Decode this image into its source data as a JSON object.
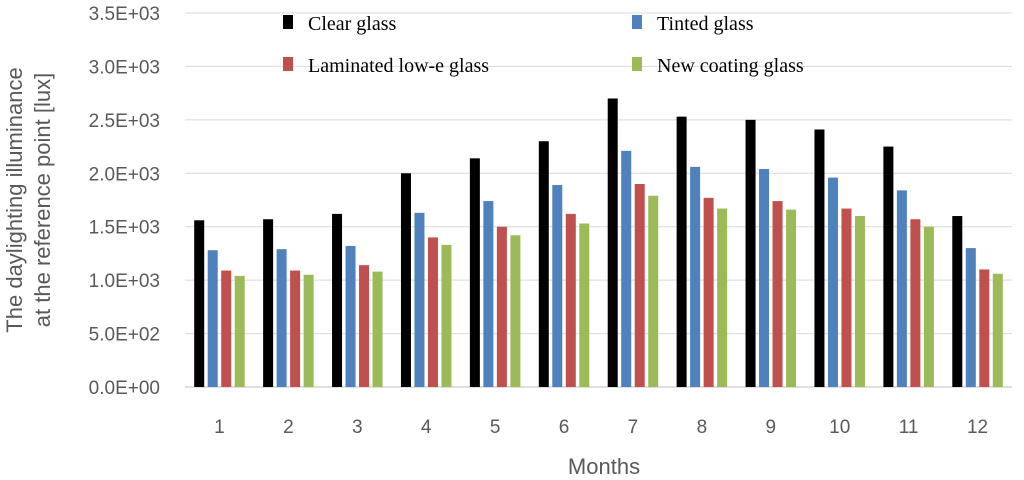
{
  "chart_data": {
    "type": "bar",
    "title": "",
    "xlabel": "Months",
    "ylabel_line1": "The daylighting illuminance",
    "ylabel_line2": "at the  reference point [lux]",
    "ylim": [
      0,
      3500
    ],
    "ytick_values": [
      0,
      500,
      1000,
      1500,
      2000,
      2500,
      3000,
      3500
    ],
    "ytick_labels": [
      "0.0E+00",
      "5.0E+02",
      "1.0E+03",
      "1.5E+03",
      "2.0E+03",
      "2.5E+03",
      "3.0E+03",
      "3.5E+03"
    ],
    "grid": true,
    "legend_position": "top",
    "categories": [
      "1",
      "2",
      "3",
      "4",
      "5",
      "6",
      "7",
      "8",
      "9",
      "10",
      "11",
      "12"
    ],
    "series": [
      {
        "name": "Clear glass",
        "color": "#000000",
        "values": [
          1560,
          1570,
          1620,
          2000,
          2140,
          2300,
          2700,
          2530,
          2500,
          2410,
          2250,
          1600
        ]
      },
      {
        "name": "Tinted glass",
        "color": "#4f81bd",
        "values": [
          1280,
          1290,
          1320,
          1630,
          1740,
          1890,
          2210,
          2060,
          2040,
          1960,
          1840,
          1300
        ]
      },
      {
        "name": "Laminated low-e glass",
        "color": "#c0504d",
        "values": [
          1090,
          1090,
          1140,
          1400,
          1500,
          1620,
          1900,
          1770,
          1740,
          1670,
          1570,
          1100
        ]
      },
      {
        "name": "New coating glass",
        "color": "#9bbb59",
        "values": [
          1040,
          1050,
          1080,
          1330,
          1420,
          1530,
          1790,
          1670,
          1660,
          1600,
          1500,
          1060
        ]
      }
    ]
  }
}
